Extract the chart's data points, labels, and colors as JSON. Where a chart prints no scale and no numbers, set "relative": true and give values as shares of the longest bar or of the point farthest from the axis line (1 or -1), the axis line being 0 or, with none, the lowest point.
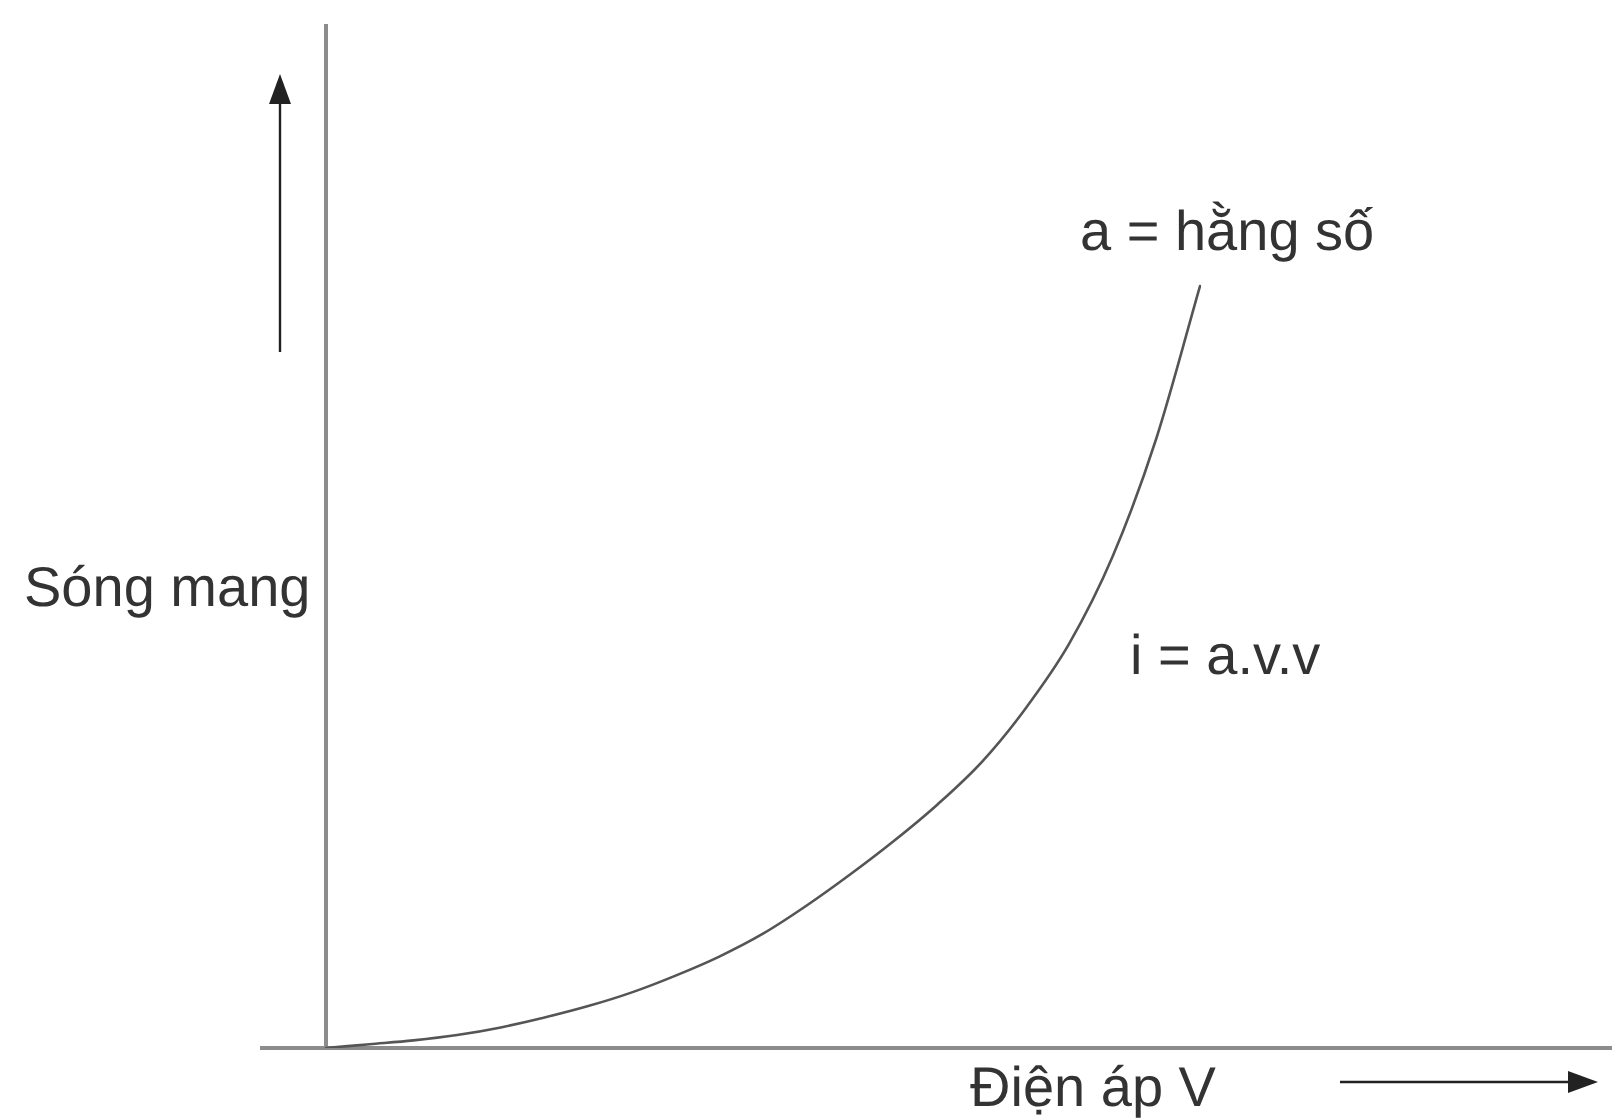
{
  "chart_data": {
    "type": "line",
    "relative": true,
    "xlabel": "Điện áp V",
    "ylabel": "Sóng mang",
    "annotations": [
      "a = hằng số",
      "i = a.v.v"
    ],
    "categories": [
      null,
      null,
      null,
      null,
      null,
      null,
      null,
      null,
      null,
      null,
      null,
      null,
      null,
      null,
      null,
      null,
      null,
      null,
      null,
      null,
      null
    ],
    "values": [
      0,
      0.005,
      0.01,
      0.017,
      0.027,
      0.04,
      0.055,
      0.073,
      0.095,
      0.12,
      0.15,
      0.187,
      0.228,
      0.272,
      0.32,
      0.375,
      0.445,
      0.53,
      0.645,
      0.8,
      1
    ],
    "color": "#555555",
    "marker": "none"
  }
}
